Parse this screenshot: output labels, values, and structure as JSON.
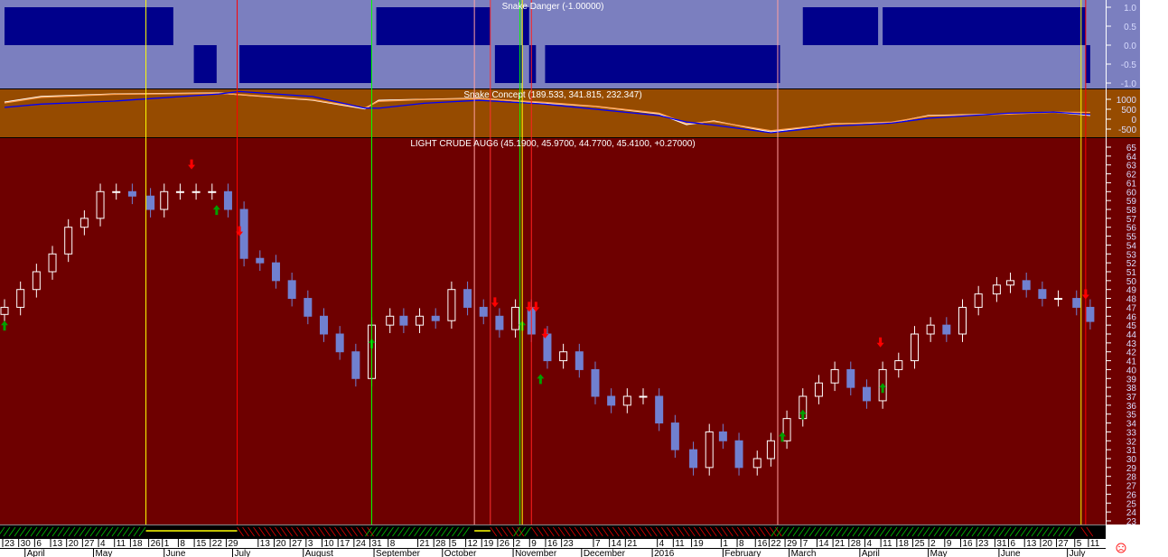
{
  "chart_data": [
    {
      "type": "bar",
      "title": "Snake Danger (-1.00000)",
      "yticks": [
        "1.0",
        "0.5",
        "0.0",
        "-0.5",
        "-1.0"
      ],
      "ylim": [
        -1,
        1
      ],
      "segments": [
        {
          "from": "2015-03-23",
          "to": "2015-06-05",
          "value": 1
        },
        {
          "from": "2015-06-14",
          "to": "2015-06-24",
          "value": -1
        },
        {
          "from": "2015-07-04",
          "to": "2015-08-31",
          "value": -1
        },
        {
          "from": "2015-09-02",
          "to": "2015-10-22",
          "value": 1
        },
        {
          "from": "2015-10-24",
          "to": "2015-11-05",
          "value": -1
        },
        {
          "from": "2015-11-05",
          "to": "2015-11-08",
          "value": 1
        },
        {
          "from": "2015-11-08",
          "to": "2015-11-11",
          "value": -1
        },
        {
          "from": "2015-11-15",
          "to": "2016-02-26",
          "value": -1
        },
        {
          "from": "2016-03-07",
          "to": "2016-04-09",
          "value": 1
        },
        {
          "from": "2016-04-11",
          "to": "2016-07-09",
          "value": 1
        },
        {
          "from": "2016-07-09",
          "to": "2016-07-11",
          "value": -1
        }
      ],
      "colors": {
        "background": "#7b7fbf",
        "bar": "#00008b"
      }
    },
    {
      "type": "line",
      "title": "Snake Concept (189.533, 341.815, 232.347)",
      "yticks": [
        1000,
        500,
        0,
        -500
      ],
      "ylim": [
        -900,
        1500
      ],
      "x": [
        "2015-03-23",
        "2015-04-08",
        "2015-05-10",
        "2015-06-25",
        "2015-07-04",
        "2015-08-05",
        "2015-08-28",
        "2015-09-03",
        "2015-09-23",
        "2015-10-17",
        "2015-11-14",
        "2015-12-07",
        "2016-01-04",
        "2016-01-16",
        "2016-01-28",
        "2016-02-22",
        "2016-03-20",
        "2016-04-15",
        "2016-05-01",
        "2016-06-05",
        "2016-06-25",
        "2016-07-11"
      ],
      "series": [
        {
          "color": "#ffffff",
          "values": [
            860,
            1140,
            1270,
            1320,
            1230,
            960,
            520,
            950,
            1000,
            1050,
            820,
            640,
            270,
            -270,
            -90,
            -640,
            -230,
            -180,
            180,
            270,
            360,
            189.5
          ]
        },
        {
          "color": "#ffa050",
          "values": [
            820,
            1100,
            1250,
            1300,
            1240,
            980,
            560,
            900,
            990,
            1030,
            850,
            650,
            300,
            -220,
            -120,
            -580,
            -250,
            -150,
            160,
            260,
            350,
            341.8
          ]
        },
        {
          "color": "#0000ff",
          "values": [
            590,
            760,
            910,
            1270,
            1390,
            1140,
            560,
            550,
            800,
            950,
            770,
            500,
            180,
            -140,
            -300,
            -680,
            -360,
            -200,
            45,
            300,
            360,
            232.3
          ]
        }
      ],
      "colors": {
        "background": "#964b00"
      }
    },
    {
      "type": "candlestick",
      "title": "LIGHT CRUDE AUG6 (45.1900, 45.9700, 44.7700, 45.4100, +0.27000)",
      "ylim": [
        23,
        65
      ],
      "ytick_step": 1,
      "x": [
        "2015-03-23",
        "2015-03-30",
        "2015-04-06",
        "2015-04-13",
        "2015-04-20",
        "2015-04-27",
        "2015-05-04",
        "2015-05-11",
        "2015-05-18",
        "2015-05-26",
        "2015-06-01",
        "2015-06-08",
        "2015-06-15",
        "2015-06-22",
        "2015-06-29",
        "2015-07-06",
        "2015-07-13",
        "2015-07-20",
        "2015-07-27",
        "2015-08-03",
        "2015-08-10",
        "2015-08-17",
        "2015-08-24",
        "2015-08-31",
        "2015-09-08",
        "2015-09-14",
        "2015-09-21",
        "2015-09-28",
        "2015-10-05",
        "2015-10-12",
        "2015-10-19",
        "2015-10-26",
        "2015-11-02",
        "2015-11-09",
        "2015-11-16",
        "2015-11-23",
        "2015-11-30",
        "2015-12-07",
        "2015-12-14",
        "2015-12-21",
        "2015-12-28",
        "2016-01-04",
        "2016-01-11",
        "2016-01-19",
        "2016-01-26",
        "2016-02-01",
        "2016-02-08",
        "2016-02-16",
        "2016-02-22",
        "2016-02-29",
        "2016-03-07",
        "2016-03-14",
        "2016-03-21",
        "2016-03-28",
        "2016-04-04",
        "2016-04-11",
        "2016-04-18",
        "2016-04-25",
        "2016-05-02",
        "2016-05-09",
        "2016-05-16",
        "2016-05-23",
        "2016-05-31",
        "2016-06-06",
        "2016-06-13",
        "2016-06-20",
        "2016-06-27",
        "2016-07-05",
        "2016-07-11"
      ],
      "close": [
        47,
        49,
        51,
        53,
        56,
        57,
        60,
        60,
        59.5,
        58,
        60,
        60,
        60,
        60,
        58,
        52.5,
        52,
        50,
        48,
        46,
        44,
        42,
        39,
        45,
        46,
        45,
        46,
        45.5,
        49,
        47,
        46,
        44.5,
        47,
        44,
        41,
        42,
        40,
        37,
        36,
        37,
        37,
        34,
        31,
        29,
        33,
        32,
        29,
        30,
        32,
        34.5,
        37,
        38.5,
        40,
        38,
        36.5,
        40,
        41,
        44,
        45,
        44,
        47,
        48.5,
        49.5,
        50,
        49,
        48,
        48,
        47,
        45.41
      ],
      "last_bar": {
        "open": 45.19,
        "high": 45.97,
        "low": 44.77,
        "close": 45.41,
        "change": 0.27
      },
      "buy_signals": [
        "2015-03-23",
        "2015-06-24",
        "2015-08-31",
        "2015-11-05",
        "2015-11-13",
        "2016-02-27",
        "2016-03-07",
        "2016-04-11"
      ],
      "sell_signals": [
        "2015-06-13",
        "2015-07-04",
        "2015-10-24",
        "2015-11-08",
        "2015-11-11",
        "2015-11-15",
        "2016-04-10",
        "2016-07-09"
      ],
      "vertical_markers": [
        {
          "date": "2015-05-24",
          "color": "#ffff00"
        },
        {
          "date": "2015-07-03",
          "color": "#ff0000"
        },
        {
          "date": "2015-08-31",
          "color": "#00ff00"
        },
        {
          "date": "2015-10-15",
          "color": "#ff9f9f"
        },
        {
          "date": "2015-10-22",
          "color": "#ff3030"
        },
        {
          "date": "2015-11-04",
          "color": "#00ff00"
        },
        {
          "date": "2015-11-05",
          "color": "#ffff00"
        },
        {
          "date": "2015-11-09",
          "color": "#ff2020"
        },
        {
          "date": "2016-02-25",
          "color": "#ff9f9f"
        },
        {
          "date": "2016-07-07",
          "color": "#ffff00"
        },
        {
          "date": "2016-07-09",
          "color": "#ff0000"
        }
      ],
      "colors": {
        "background": "#6e0000",
        "up": "#ffffff",
        "down": "#7080d0",
        "buy": "#00a000",
        "sell": "#ff0000"
      }
    }
  ],
  "trend_strip": [
    {
      "from": "2015-03-23",
      "to": "2015-05-24",
      "state": "up"
    },
    {
      "from": "2015-05-24",
      "to": "2015-07-03",
      "state": "neutral"
    },
    {
      "from": "2015-07-03",
      "to": "2015-08-31",
      "state": "down"
    },
    {
      "from": "2015-08-31",
      "to": "2015-10-15",
      "state": "up"
    },
    {
      "from": "2015-10-15",
      "to": "2015-10-22",
      "state": "neutral"
    },
    {
      "from": "2015-10-22",
      "to": "2015-11-04",
      "state": "down"
    },
    {
      "from": "2015-11-04",
      "to": "2015-11-09",
      "state": "up"
    },
    {
      "from": "2015-11-09",
      "to": "2016-02-25",
      "state": "down"
    },
    {
      "from": "2016-02-25",
      "to": "2016-07-07",
      "state": "up"
    },
    {
      "from": "2016-07-07",
      "to": "2016-07-11",
      "state": "down"
    }
  ],
  "x_axis": {
    "day_labels": [
      [
        "23",
        "2015-03-23"
      ],
      [
        "30",
        "2015-03-30"
      ],
      [
        "6",
        "2015-04-06"
      ],
      [
        "13",
        "2015-04-13"
      ],
      [
        "20",
        "2015-04-20"
      ],
      [
        "27",
        "2015-04-27"
      ],
      [
        "4",
        "2015-05-04"
      ],
      [
        "11",
        "2015-05-11"
      ],
      [
        "18",
        "2015-05-18"
      ],
      [
        "26",
        "2015-05-26"
      ],
      [
        "1",
        "2015-06-01"
      ],
      [
        "8",
        "2015-06-08"
      ],
      [
        "15",
        "2015-06-15"
      ],
      [
        "22",
        "2015-06-22"
      ],
      [
        "29",
        "2015-06-29"
      ],
      [
        "13",
        "2015-07-13"
      ],
      [
        "20",
        "2015-07-20"
      ],
      [
        "27",
        "2015-07-27"
      ],
      [
        "3",
        "2015-08-03"
      ],
      [
        "10",
        "2015-08-10"
      ],
      [
        "17",
        "2015-08-17"
      ],
      [
        "24",
        "2015-08-24"
      ],
      [
        "31",
        "2015-08-31"
      ],
      [
        "8",
        "2015-09-08"
      ],
      [
        "21",
        "2015-09-21"
      ],
      [
        "28",
        "2015-09-28"
      ],
      [
        "5",
        "2015-10-05"
      ],
      [
        "12",
        "2015-10-12"
      ],
      [
        "19",
        "2015-10-19"
      ],
      [
        "26",
        "2015-10-26"
      ],
      [
        "2",
        "2015-11-02"
      ],
      [
        "9",
        "2015-11-09"
      ],
      [
        "16",
        "2015-11-16"
      ],
      [
        "23",
        "2015-11-23"
      ],
      [
        "7",
        "2015-12-07"
      ],
      [
        "14",
        "2015-12-14"
      ],
      [
        "21",
        "2015-12-21"
      ],
      [
        "4",
        "2016-01-04"
      ],
      [
        "11",
        "2016-01-11"
      ],
      [
        "19",
        "2016-01-19"
      ],
      [
        "1",
        "2016-02-01"
      ],
      [
        "8",
        "2016-02-08"
      ],
      [
        "16",
        "2016-02-16"
      ],
      [
        "22",
        "2016-02-22"
      ],
      [
        "29",
        "2016-02-29"
      ],
      [
        "7",
        "2016-03-07"
      ],
      [
        "14",
        "2016-03-14"
      ],
      [
        "21",
        "2016-03-21"
      ],
      [
        "28",
        "2016-03-28"
      ],
      [
        "4",
        "2016-04-04"
      ],
      [
        "11",
        "2016-04-11"
      ],
      [
        "18",
        "2016-04-18"
      ],
      [
        "25",
        "2016-04-25"
      ],
      [
        "2",
        "2016-05-02"
      ],
      [
        "9",
        "2016-05-09"
      ],
      [
        "16",
        "2016-05-16"
      ],
      [
        "23",
        "2016-05-23"
      ],
      [
        "31",
        "2016-05-31"
      ],
      [
        "6",
        "2016-06-06"
      ],
      [
        "13",
        "2016-06-13"
      ],
      [
        "20",
        "2016-06-20"
      ],
      [
        "27",
        "2016-06-27"
      ],
      [
        "5",
        "2016-07-05"
      ],
      [
        "11",
        "2016-07-11"
      ]
    ],
    "month_labels": [
      [
        "April",
        "2015-04-01"
      ],
      [
        "May",
        "2015-05-01"
      ],
      [
        "June",
        "2015-06-01"
      ],
      [
        "July",
        "2015-07-01"
      ],
      [
        "August",
        "2015-08-01"
      ],
      [
        "September",
        "2015-09-01"
      ],
      [
        "October",
        "2015-10-01"
      ],
      [
        "November",
        "2015-11-01"
      ],
      [
        "December",
        "2015-12-01"
      ],
      [
        "2016",
        "2016-01-01"
      ],
      [
        "February",
        "2016-02-01"
      ],
      [
        "March",
        "2016-03-01"
      ],
      [
        "April",
        "2016-04-01"
      ],
      [
        "May",
        "2016-05-01"
      ],
      [
        "June",
        "2016-06-01"
      ],
      [
        "July",
        "2016-07-01"
      ]
    ]
  },
  "status_icon": "sad-face-icon"
}
